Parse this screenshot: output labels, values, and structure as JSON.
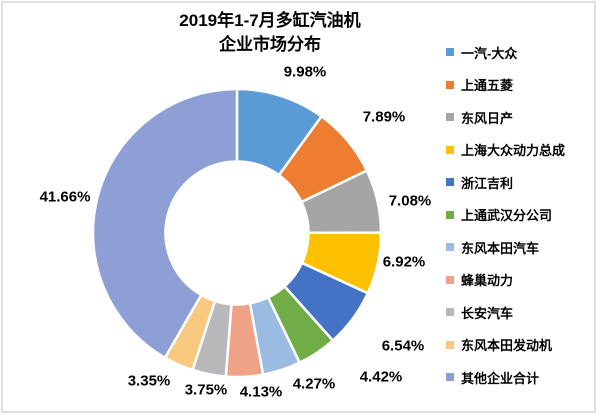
{
  "title": {
    "line1": "2019年1-7月多缸汽油机",
    "line2": "企业市场分布"
  },
  "chart_data": {
    "type": "pie",
    "subtype": "donut",
    "title": "2019年1-7月多缸汽油机企业市场分布",
    "unit": "%",
    "categories": [
      "一汽-大众",
      "上通五菱",
      "东风日产",
      "上海大众动力总成",
      "浙江吉利",
      "上通武汉分公司",
      "东风本田汽车",
      "蜂巢动力",
      "长安汽车",
      "东风本田发动机",
      "其他企业合计"
    ],
    "values": [
      9.98,
      7.89,
      7.08,
      6.92,
      6.54,
      4.42,
      4.27,
      4.13,
      3.75,
      3.35,
      41.66
    ],
    "labels": [
      "9.98%",
      "7.89%",
      "7.08%",
      "6.92%",
      "6.54%",
      "4.42%",
      "4.27%",
      "4.13%",
      "3.75%",
      "3.35%",
      "41.66%"
    ],
    "colors": [
      "#5B9BD5",
      "#ED7D31",
      "#A5A5A5",
      "#FFC000",
      "#4472C4",
      "#70AD47",
      "#9BBBE2",
      "#F0A287",
      "#B8B8BA",
      "#F8C97E",
      "#8E9FD6"
    ],
    "legend_position": "right",
    "start_angle_deg": 0,
    "direction": "clockwise",
    "donut_hole_ratio": 0.5,
    "label_placement": "outside-end",
    "border_color": "#DEDEDE"
  }
}
